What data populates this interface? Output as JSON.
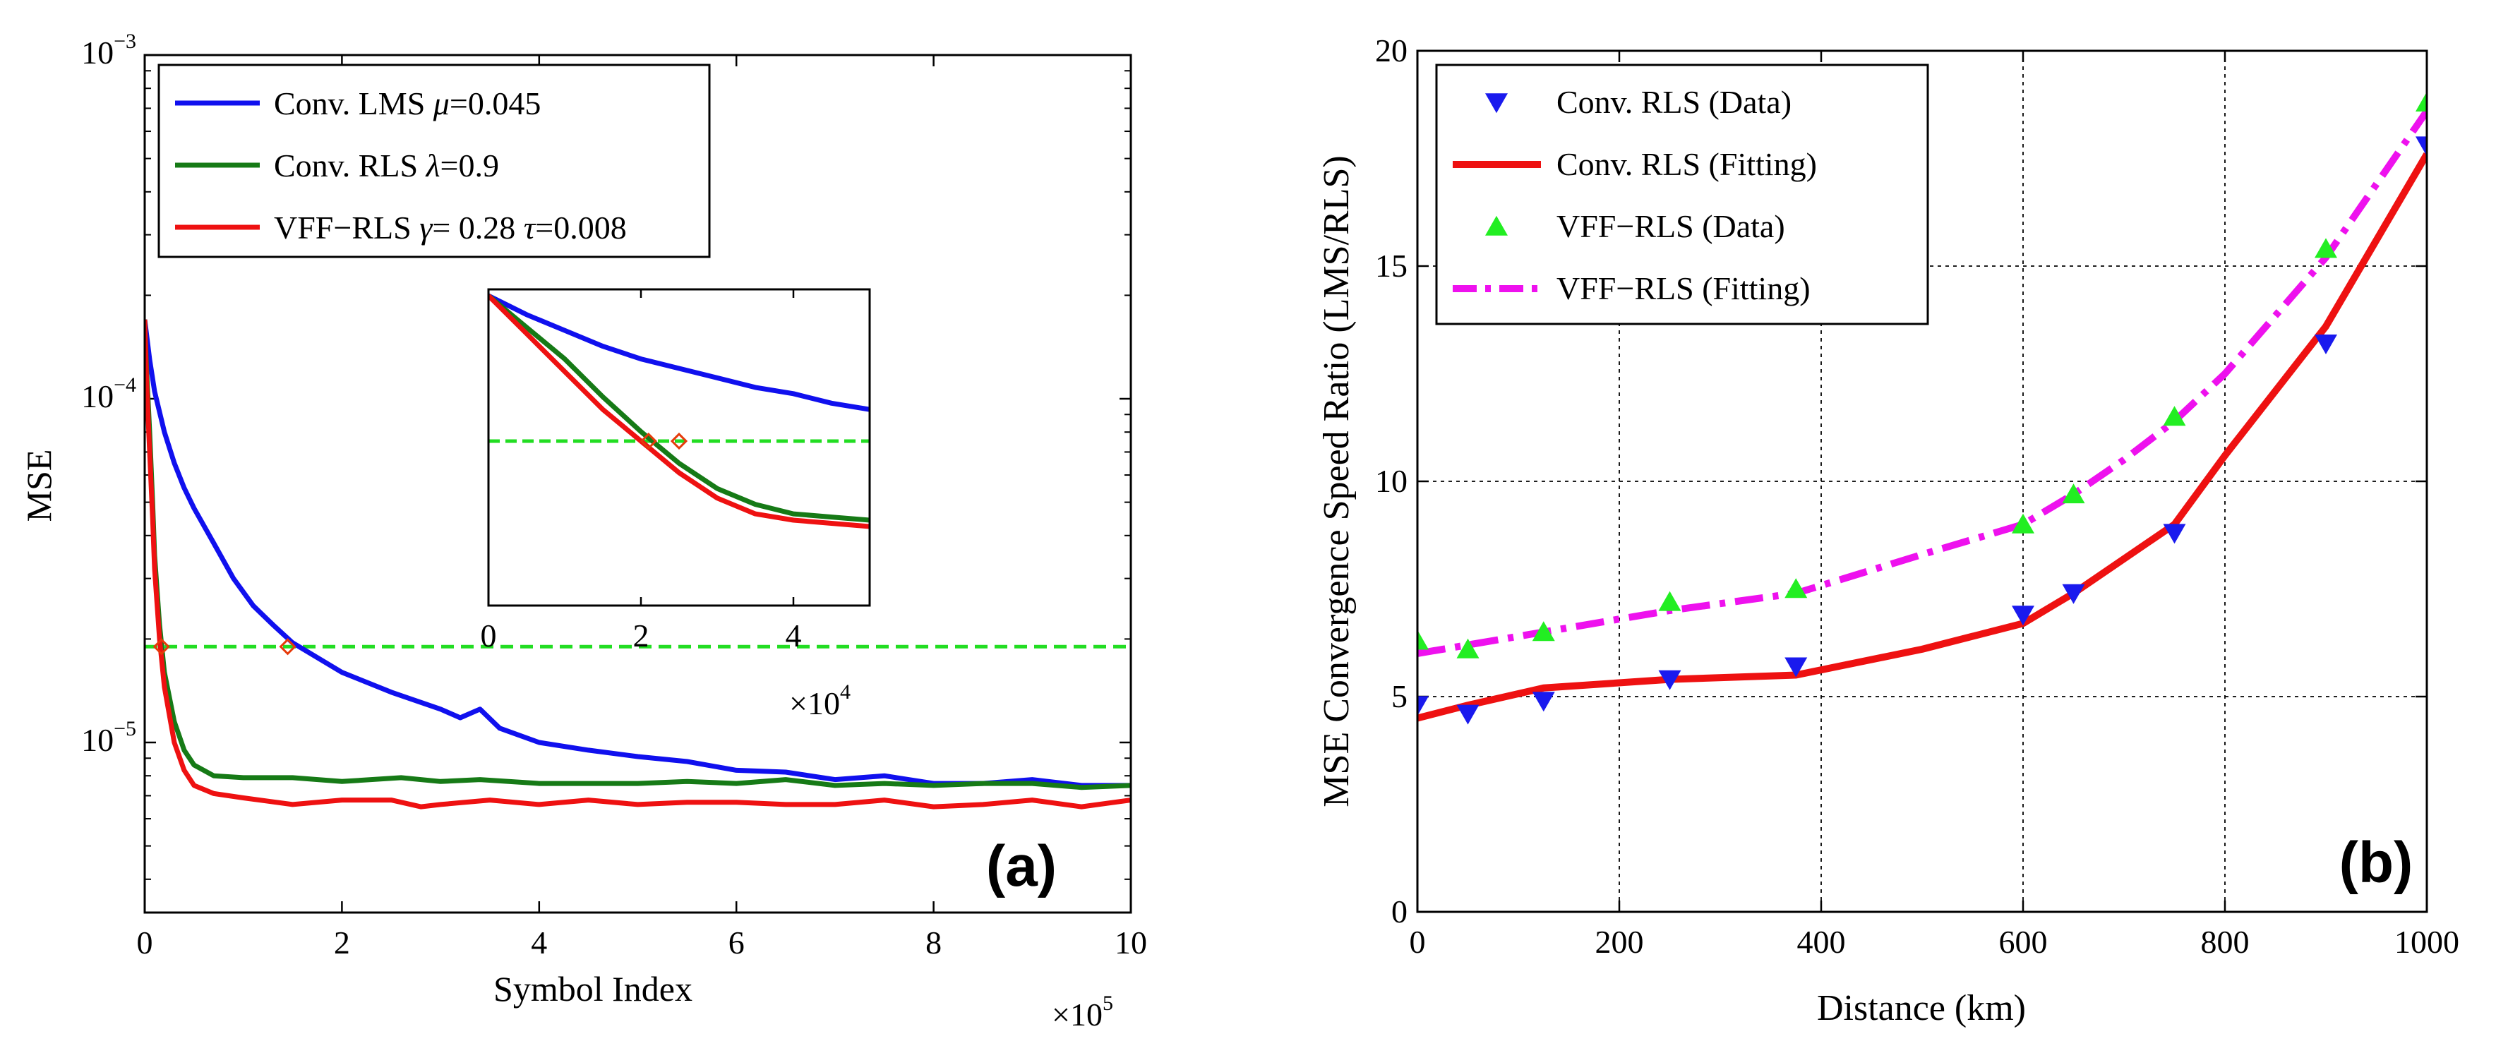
{
  "chart_data": [
    {
      "id": "a",
      "type": "line",
      "panel_label": "(a)",
      "ylabel": "MSE",
      "xlabel": "Symbol Index",
      "x_multiplier": "×10",
      "x_multiplier_exp": "5",
      "yscale": "log",
      "xlim": [
        0,
        10
      ],
      "ylim": [
        3.2e-06,
        0.001
      ],
      "x_ticks": [
        0,
        2,
        4,
        6,
        8,
        10
      ],
      "x_tick_labels": [
        "0",
        "2",
        "4",
        "6",
        "8",
        "10"
      ],
      "y_ticks": [
        1e-05,
        0.0001,
        0.001
      ],
      "y_tick_labels": [
        {
          "base": "10",
          "exp": "−5"
        },
        {
          "base": "10",
          "exp": "−4"
        },
        {
          "base": "10",
          "exp": "−3"
        }
      ],
      "legend": {
        "position": "top-left",
        "entries": [
          {
            "series": "lms",
            "parts": [
              {
                "t": "Conv. LMS "
              },
              {
                "t": "μ",
                "i": true
              },
              {
                "t": "=0.045"
              }
            ]
          },
          {
            "series": "rls",
            "parts": [
              {
                "t": "Conv. RLS "
              },
              {
                "t": "λ",
                "i": true
              },
              {
                "t": "=0.9"
              }
            ]
          },
          {
            "series": "vff",
            "parts": [
              {
                "t": "VFF−RLS "
              },
              {
                "t": "γ",
                "i": true
              },
              {
                "t": "= 0.28 "
              },
              {
                "t": "τ",
                "i": true
              },
              {
                "t": "=0.008"
              }
            ]
          }
        ]
      },
      "reference_line": {
        "y": 1.9e-05,
        "color": "#22dd22",
        "style": "dashed"
      },
      "markers": [
        {
          "x": 0.17,
          "y": 1.9e-05,
          "color": "#e63a0a"
        },
        {
          "x": 1.45,
          "y": 1.9e-05,
          "color": "#e63a0a"
        }
      ],
      "series": [
        {
          "key": "lms",
          "name": "Conv. LMS",
          "color": "#1010ee",
          "x": [
            0,
            0.05,
            0.1,
            0.2,
            0.3,
            0.4,
            0.5,
            0.7,
            0.9,
            1.1,
            1.3,
            1.5,
            2,
            2.5,
            3,
            3.2,
            3.4,
            3.6,
            4,
            4.5,
            5,
            5.5,
            6,
            6.5,
            7,
            7.5,
            8,
            8.5,
            9,
            9.5,
            10
          ],
          "y": [
            0.00017,
            0.00013,
            0.000105,
            8e-05,
            6.5e-05,
            5.5e-05,
            4.8e-05,
            3.8e-05,
            3e-05,
            2.5e-05,
            2.2e-05,
            1.95e-05,
            1.6e-05,
            1.4e-05,
            1.25e-05,
            1.18e-05,
            1.25e-05,
            1.1e-05,
            1e-05,
            9.5e-06,
            9.1e-06,
            8.8e-06,
            8.3e-06,
            8.2e-06,
            7.8e-06,
            8e-06,
            7.6e-06,
            7.6e-06,
            7.8e-06,
            7.5e-06,
            7.5e-06
          ]
        },
        {
          "key": "rls",
          "name": "Conv. RLS",
          "color": "#167a16",
          "x": [
            0,
            0.02,
            0.05,
            0.08,
            0.1,
            0.15,
            0.2,
            0.3,
            0.4,
            0.5,
            0.7,
            1,
            1.5,
            2,
            2.6,
            3,
            3.4,
            4,
            4.5,
            5,
            5.5,
            6,
            6.5,
            7,
            7.5,
            8,
            8.5,
            9,
            9.5,
            10
          ],
          "y": [
            0.00017,
            0.00012,
            8e-05,
            5e-05,
            3.5e-05,
            2.2e-05,
            1.6e-05,
            1.15e-05,
            9.5e-06,
            8.6e-06,
            8e-06,
            7.9e-06,
            7.9e-06,
            7.7e-06,
            7.9e-06,
            7.7e-06,
            7.8e-06,
            7.6e-06,
            7.6e-06,
            7.6e-06,
            7.7e-06,
            7.6e-06,
            7.8e-06,
            7.5e-06,
            7.6e-06,
            7.5e-06,
            7.6e-06,
            7.6e-06,
            7.4e-06,
            7.5e-06
          ]
        },
        {
          "key": "vff",
          "name": "VFF−RLS",
          "color": "#ee1111",
          "x": [
            0,
            0.02,
            0.05,
            0.08,
            0.1,
            0.15,
            0.2,
            0.3,
            0.4,
            0.5,
            0.7,
            1,
            1.5,
            2,
            2.5,
            2.8,
            3,
            3.5,
            4,
            4.5,
            5,
            5.5,
            6,
            6.5,
            7,
            7.5,
            8,
            8.5,
            9,
            9.5,
            10
          ],
          "y": [
            0.00017,
            0.00011,
            7e-05,
            4.5e-05,
            3.2e-05,
            2e-05,
            1.45e-05,
            1e-05,
            8.3e-06,
            7.5e-06,
            7.1e-06,
            6.9e-06,
            6.6e-06,
            6.8e-06,
            6.8e-06,
            6.5e-06,
            6.6e-06,
            6.8e-06,
            6.6e-06,
            6.8e-06,
            6.6e-06,
            6.7e-06,
            6.7e-06,
            6.6e-06,
            6.6e-06,
            6.8e-06,
            6.5e-06,
            6.6e-06,
            6.8e-06,
            6.5e-06,
            6.8e-06
          ]
        }
      ],
      "inset": {
        "xlim": [
          0,
          5
        ],
        "ylim": [
          0,
          1
        ],
        "x_ticks": [
          0,
          2,
          4
        ],
        "x_tick_labels": [
          "0",
          "2",
          "4"
        ],
        "x_multiplier": "×10",
        "x_multiplier_exp": "4",
        "reference_line": {
          "y": 0.52,
          "color": "#22dd22",
          "style": "dashed"
        },
        "markers": [
          {
            "x": 2.1,
            "y": 0.52,
            "color": "#e63a0a"
          },
          {
            "x": 2.5,
            "y": 0.52,
            "color": "#e63a0a"
          }
        ],
        "series": [
          {
            "key": "lms",
            "color": "#1010ee",
            "x": [
              0,
              0.5,
              1,
              1.5,
              2,
              2.5,
              3,
              3.5,
              4,
              4.5,
              5
            ],
            "y": [
              0.98,
              0.92,
              0.87,
              0.82,
              0.78,
              0.75,
              0.72,
              0.69,
              0.67,
              0.64,
              0.62
            ]
          },
          {
            "key": "rls",
            "color": "#167a16",
            "x": [
              0,
              0.5,
              1,
              1.5,
              2,
              2.5,
              3,
              3.5,
              4,
              4.5,
              5
            ],
            "y": [
              0.98,
              0.88,
              0.78,
              0.66,
              0.55,
              0.45,
              0.37,
              0.32,
              0.29,
              0.28,
              0.27
            ]
          },
          {
            "key": "vff",
            "color": "#ee1111",
            "x": [
              0,
              0.5,
              1,
              1.5,
              2,
              2.5,
              3,
              3.5,
              4,
              4.5,
              5
            ],
            "y": [
              0.98,
              0.86,
              0.74,
              0.62,
              0.52,
              0.42,
              0.34,
              0.29,
              0.27,
              0.26,
              0.25
            ]
          }
        ]
      }
    },
    {
      "id": "b",
      "type": "line",
      "panel_label": "(b)",
      "ylabel": "MSE Convergence Speed Ratio (LMS/RLS)",
      "xlabel": "Distance (km)",
      "xlim": [
        0,
        1000
      ],
      "ylim": [
        0,
        20
      ],
      "grid": true,
      "x_ticks": [
        0,
        200,
        400,
        600,
        800,
        1000
      ],
      "x_tick_labels": [
        "0",
        "200",
        "400",
        "600",
        "800",
        "1000"
      ],
      "y_ticks": [
        0,
        5,
        10,
        15,
        20
      ],
      "y_tick_labels": [
        "0",
        "5",
        "10",
        "15",
        "20"
      ],
      "legend": {
        "position": "top-left",
        "entries": [
          {
            "series": "rls_data",
            "label": "Conv. RLS (Data)"
          },
          {
            "series": "rls_fit",
            "label": "Conv. RLS (Fitting)"
          },
          {
            "series": "vff_data",
            "label": "VFF−RLS (Data)"
          },
          {
            "series": "vff_fit",
            "label": "VFF−RLS (Fitting)"
          }
        ]
      },
      "series": [
        {
          "key": "rls_data",
          "name": "Conv. RLS (Data)",
          "style": "marker-down-triangle",
          "color": "#1a1aee",
          "x": [
            0,
            50,
            125,
            250,
            375,
            600,
            650,
            750,
            900,
            1000
          ],
          "y": [
            4.8,
            4.6,
            4.9,
            5.4,
            5.7,
            6.9,
            7.4,
            8.8,
            13.2,
            17.8
          ]
        },
        {
          "key": "rls_fit",
          "name": "Conv. RLS (Fitting)",
          "style": "solid",
          "color": "#ee1111",
          "x": [
            0,
            50,
            125,
            250,
            375,
            500,
            600,
            650,
            750,
            800,
            900,
            1000
          ],
          "y": [
            4.5,
            4.8,
            5.2,
            5.4,
            5.5,
            6.1,
            6.7,
            7.4,
            9.0,
            10.6,
            13.6,
            17.6
          ]
        },
        {
          "key": "vff_data",
          "name": "VFF−RLS (Data)",
          "style": "marker-up-triangle",
          "color": "#22ee22",
          "x": [
            0,
            50,
            125,
            250,
            375,
            600,
            650,
            750,
            900,
            1000
          ],
          "y": [
            6.3,
            6.1,
            6.5,
            7.2,
            7.5,
            9.0,
            9.7,
            11.5,
            15.4,
            18.8
          ]
        },
        {
          "key": "vff_fit",
          "name": "VFF−RLS (Fitting)",
          "style": "dashdot",
          "color": "#ee11ee",
          "x": [
            0,
            125,
            250,
            375,
            500,
            600,
            650,
            700,
            750,
            800,
            900,
            1000
          ],
          "y": [
            6.0,
            6.5,
            7.0,
            7.4,
            8.3,
            9.0,
            9.7,
            10.5,
            11.4,
            12.5,
            15.2,
            18.6
          ]
        }
      ]
    }
  ]
}
